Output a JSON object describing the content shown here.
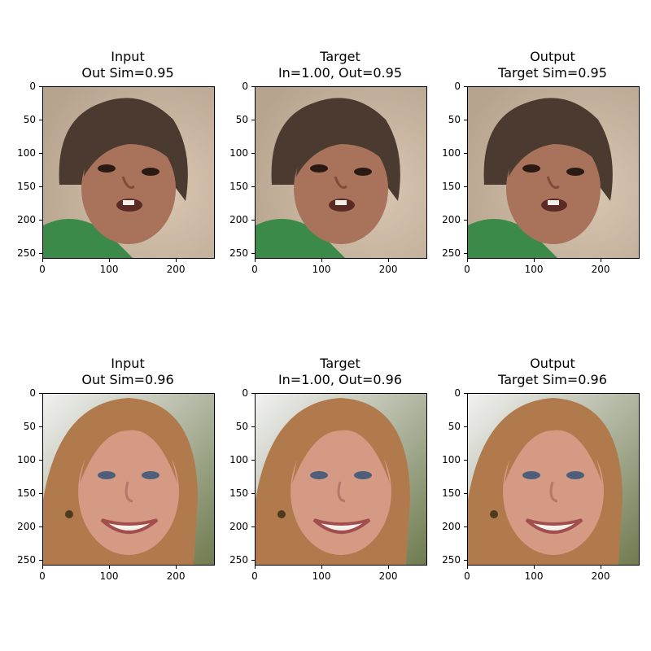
{
  "figure": {
    "background": "#ffffff",
    "rows": [
      {
        "panels": [
          {
            "title_line1": "Input",
            "title_line2": "Out Sim=0.95",
            "image": "child-face-photo",
            "tone": "child"
          },
          {
            "title_line1": "Target",
            "title_line2": "In=1.00, Out=0.95",
            "image": "child-face-photo",
            "tone": "child"
          },
          {
            "title_line1": "Output",
            "title_line2": "Target Sim=0.95",
            "image": "child-face-photo",
            "tone": "child"
          }
        ]
      },
      {
        "panels": [
          {
            "title_line1": "Input",
            "title_line2": "Out Sim=0.96",
            "image": "woman-face-photo",
            "tone": "woman"
          },
          {
            "title_line1": "Target",
            "title_line2": "In=1.00, Out=0.96",
            "image": "woman-face-photo",
            "tone": "woman"
          },
          {
            "title_line1": "Output",
            "title_line2": "Target Sim=0.96",
            "image": "woman-face-photo",
            "tone": "woman"
          }
        ]
      }
    ],
    "y_ticks": [
      "0",
      "50",
      "100",
      "150",
      "200",
      "250"
    ],
    "x_ticks": [
      "0",
      "100",
      "200"
    ],
    "y_tick_values": [
      0,
      50,
      100,
      150,
      200,
      250
    ],
    "x_tick_values": [
      0,
      100,
      200
    ],
    "image_extent": [
      0,
      256
    ]
  }
}
